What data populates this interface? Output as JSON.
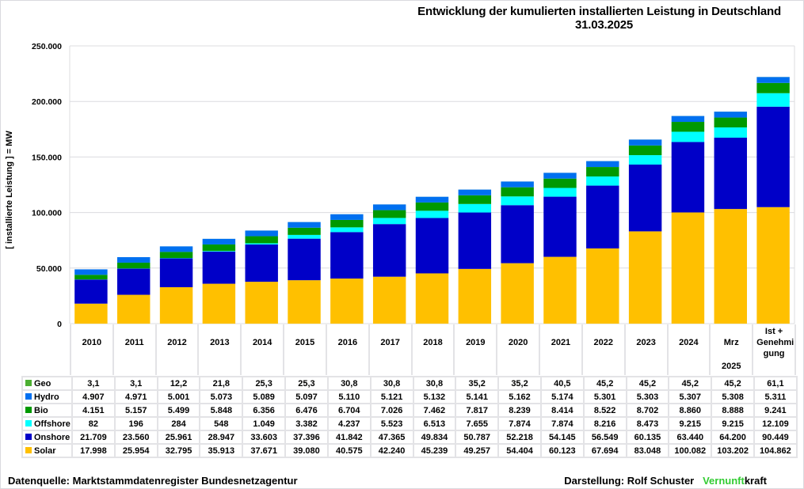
{
  "chart_data": {
    "type": "bar",
    "stacked": true,
    "title": "Entwicklung der kumulierten installierten Leistung in Deutschland",
    "date": "31.03.2025",
    "ylabel": "[ installierte Leistung ] = MW",
    "xlabel": "",
    "ylim": [
      0,
      250000
    ],
    "yticks": [
      0,
      50000,
      100000,
      150000,
      200000,
      250000
    ],
    "ytick_labels": [
      "0",
      "50.000",
      "100.000",
      "150.000",
      "200.000",
      "250.000"
    ],
    "grid": true,
    "legend": "table-left",
    "categories": [
      "2010",
      "2011",
      "2012",
      "2013",
      "2014",
      "2015",
      "2016",
      "2017",
      "2018",
      "2019",
      "2020",
      "2021",
      "2022",
      "2023",
      "2024",
      "Mrz 2025",
      "Ist + Genehmigung"
    ],
    "category_labels": [
      {
        "top": "2010",
        "bottom": ""
      },
      {
        "top": "2011",
        "bottom": ""
      },
      {
        "top": "2012",
        "bottom": ""
      },
      {
        "top": "2013",
        "bottom": ""
      },
      {
        "top": "2014",
        "bottom": ""
      },
      {
        "top": "2015",
        "bottom": ""
      },
      {
        "top": "2016",
        "bottom": ""
      },
      {
        "top": "2017",
        "bottom": ""
      },
      {
        "top": "2018",
        "bottom": ""
      },
      {
        "top": "2019",
        "bottom": ""
      },
      {
        "top": "2020",
        "bottom": ""
      },
      {
        "top": "2021",
        "bottom": ""
      },
      {
        "top": "2022",
        "bottom": ""
      },
      {
        "top": "2023",
        "bottom": ""
      },
      {
        "top": "2024",
        "bottom": ""
      },
      {
        "top": "Mrz",
        "bottom": "2025"
      },
      {
        "top": "Ist + Genehmi gung",
        "bottom": ""
      }
    ],
    "series": [
      {
        "name": "Solar",
        "color": "#ffc000",
        "values": [
          17998,
          25954,
          32795,
          35913,
          37671,
          39080,
          40575,
          42240,
          45239,
          49257,
          54404,
          60123,
          67694,
          83048,
          100082,
          103202,
          104862
        ],
        "labels": [
          "17.998",
          "25.954",
          "32.795",
          "35.913",
          "37.671",
          "39.080",
          "40.575",
          "42.240",
          "45.239",
          "49.257",
          "54.404",
          "60.123",
          "67.694",
          "83.048",
          "100.082",
          "103.202",
          "104.862"
        ]
      },
      {
        "name": "Onshore",
        "color": "#0000c8",
        "values": [
          21709,
          23560,
          25961,
          28947,
          33603,
          37396,
          41842,
          47365,
          49834,
          50787,
          52218,
          54145,
          56549,
          60135,
          63440,
          64200,
          90449
        ],
        "labels": [
          "21.709",
          "23.560",
          "25.961",
          "28.947",
          "33.603",
          "37.396",
          "41.842",
          "47.365",
          "49.834",
          "50.787",
          "52.218",
          "54.145",
          "56.549",
          "60.135",
          "63.440",
          "64.200",
          "90.449"
        ]
      },
      {
        "name": "Offshore",
        "color": "#00ffff",
        "values": [
          82,
          196,
          284,
          548,
          1049,
          3382,
          4237,
          5523,
          6513,
          7655,
          7874,
          7874,
          8216,
          8473,
          9215,
          9215,
          12109
        ],
        "labels": [
          "82",
          "196",
          "284",
          "548",
          "1.049",
          "3.382",
          "4.237",
          "5.523",
          "6.513",
          "7.655",
          "7.874",
          "7.874",
          "8.216",
          "8.473",
          "9.215",
          "9.215",
          "12.109"
        ]
      },
      {
        "name": "Bio",
        "color": "#009900",
        "values": [
          4151,
          5157,
          5499,
          5848,
          6356,
          6476,
          6704,
          7026,
          7462,
          7817,
          8239,
          8414,
          8522,
          8702,
          8860,
          8888,
          9241
        ],
        "labels": [
          "4.151",
          "5.157",
          "5.499",
          "5.848",
          "6.356",
          "6.476",
          "6.704",
          "7.026",
          "7.462",
          "7.817",
          "8.239",
          "8.414",
          "8.522",
          "8.702",
          "8.860",
          "8.888",
          "9.241"
        ]
      },
      {
        "name": "Hydro",
        "color": "#0070f0",
        "values": [
          4907,
          4971,
          5001,
          5073,
          5089,
          5097,
          5110,
          5121,
          5132,
          5141,
          5162,
          5174,
          5301,
          5303,
          5307,
          5308,
          5311
        ],
        "labels": [
          "4.907",
          "4.971",
          "5.001",
          "5.073",
          "5.089",
          "5.097",
          "5.110",
          "5.121",
          "5.132",
          "5.141",
          "5.162",
          "5.174",
          "5.301",
          "5.303",
          "5.307",
          "5.308",
          "5.311"
        ]
      },
      {
        "name": "Geo",
        "color": "#4caf32",
        "values": [
          3.1,
          3.1,
          12.2,
          21.8,
          25.3,
          25.3,
          30.8,
          30.8,
          30.8,
          35.2,
          35.2,
          40.5,
          45.2,
          45.2,
          45.2,
          45.2,
          61.1
        ],
        "labels": [
          "3,1",
          "3,1",
          "12,2",
          "21,8",
          "25,3",
          "25,3",
          "30,8",
          "30,8",
          "30,8",
          "35,2",
          "35,2",
          "40,5",
          "45,2",
          "45,2",
          "45,2",
          "45,2",
          "61,1"
        ]
      }
    ],
    "table_row_order": [
      "Geo",
      "Hydro",
      "Bio",
      "Offshore",
      "Onshore",
      "Solar"
    ]
  },
  "footer": {
    "source": "Datenquelle: Marktstammdatenregister Bundesnetzagentur",
    "author": "Darstellung:  Rolf Schuster",
    "brand_green": "Vernunft",
    "brand_black": "kraft",
    "brand_color": "#33cc33"
  }
}
